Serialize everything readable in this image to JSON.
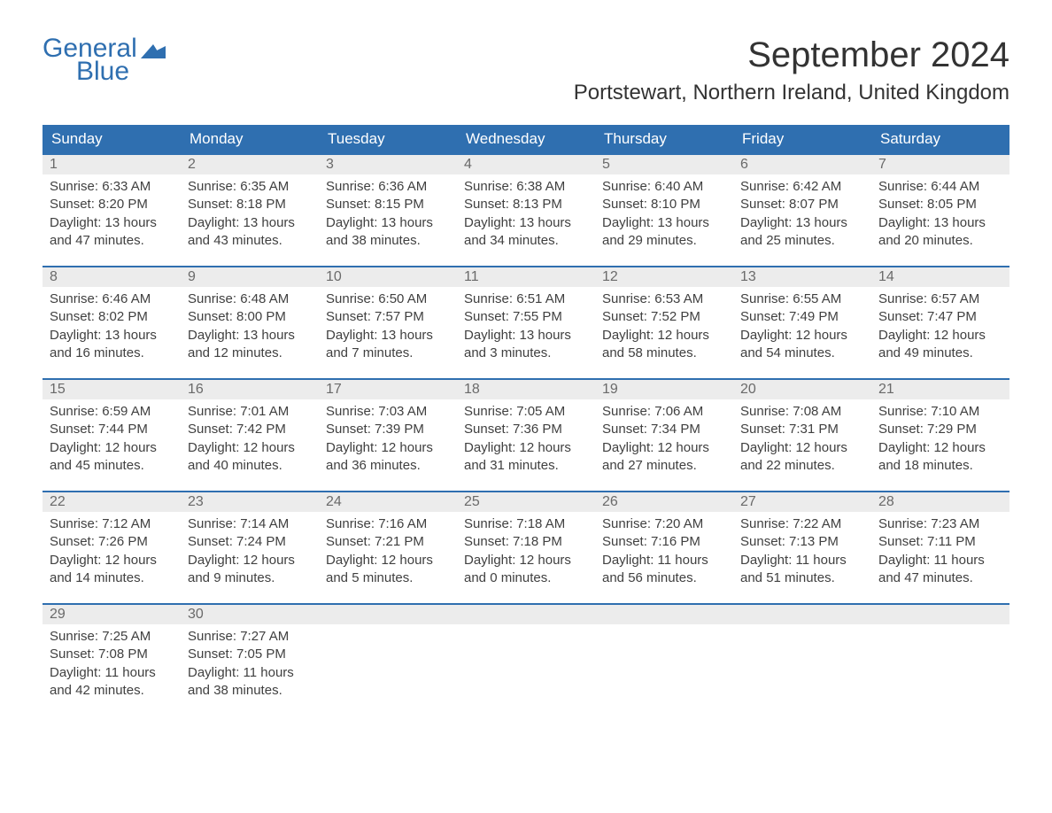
{
  "logo": {
    "line1": "General",
    "line2": "Blue",
    "flag_color": "#2f6fb0"
  },
  "title": "September 2024",
  "location": "Portstewart, Northern Ireland, United Kingdom",
  "day_headers": [
    "Sunday",
    "Monday",
    "Tuesday",
    "Wednesday",
    "Thursday",
    "Friday",
    "Saturday"
  ],
  "colors": {
    "header_bg": "#2f6fb0",
    "header_text": "#ffffff",
    "daynum_bg": "#ececec",
    "day_border": "#2f6fb0",
    "body_text": "#404040"
  },
  "weeks": [
    [
      {
        "n": "1",
        "sunrise": "6:33 AM",
        "sunset": "8:20 PM",
        "dl1": "Daylight: 13 hours",
        "dl2": "and 47 minutes."
      },
      {
        "n": "2",
        "sunrise": "6:35 AM",
        "sunset": "8:18 PM",
        "dl1": "Daylight: 13 hours",
        "dl2": "and 43 minutes."
      },
      {
        "n": "3",
        "sunrise": "6:36 AM",
        "sunset": "8:15 PM",
        "dl1": "Daylight: 13 hours",
        "dl2": "and 38 minutes."
      },
      {
        "n": "4",
        "sunrise": "6:38 AM",
        "sunset": "8:13 PM",
        "dl1": "Daylight: 13 hours",
        "dl2": "and 34 minutes."
      },
      {
        "n": "5",
        "sunrise": "6:40 AM",
        "sunset": "8:10 PM",
        "dl1": "Daylight: 13 hours",
        "dl2": "and 29 minutes."
      },
      {
        "n": "6",
        "sunrise": "6:42 AM",
        "sunset": "8:07 PM",
        "dl1": "Daylight: 13 hours",
        "dl2": "and 25 minutes."
      },
      {
        "n": "7",
        "sunrise": "6:44 AM",
        "sunset": "8:05 PM",
        "dl1": "Daylight: 13 hours",
        "dl2": "and 20 minutes."
      }
    ],
    [
      {
        "n": "8",
        "sunrise": "6:46 AM",
        "sunset": "8:02 PM",
        "dl1": "Daylight: 13 hours",
        "dl2": "and 16 minutes."
      },
      {
        "n": "9",
        "sunrise": "6:48 AM",
        "sunset": "8:00 PM",
        "dl1": "Daylight: 13 hours",
        "dl2": "and 12 minutes."
      },
      {
        "n": "10",
        "sunrise": "6:50 AM",
        "sunset": "7:57 PM",
        "dl1": "Daylight: 13 hours",
        "dl2": "and 7 minutes."
      },
      {
        "n": "11",
        "sunrise": "6:51 AM",
        "sunset": "7:55 PM",
        "dl1": "Daylight: 13 hours",
        "dl2": "and 3 minutes."
      },
      {
        "n": "12",
        "sunrise": "6:53 AM",
        "sunset": "7:52 PM",
        "dl1": "Daylight: 12 hours",
        "dl2": "and 58 minutes."
      },
      {
        "n": "13",
        "sunrise": "6:55 AM",
        "sunset": "7:49 PM",
        "dl1": "Daylight: 12 hours",
        "dl2": "and 54 minutes."
      },
      {
        "n": "14",
        "sunrise": "6:57 AM",
        "sunset": "7:47 PM",
        "dl1": "Daylight: 12 hours",
        "dl2": "and 49 minutes."
      }
    ],
    [
      {
        "n": "15",
        "sunrise": "6:59 AM",
        "sunset": "7:44 PM",
        "dl1": "Daylight: 12 hours",
        "dl2": "and 45 minutes."
      },
      {
        "n": "16",
        "sunrise": "7:01 AM",
        "sunset": "7:42 PM",
        "dl1": "Daylight: 12 hours",
        "dl2": "and 40 minutes."
      },
      {
        "n": "17",
        "sunrise": "7:03 AM",
        "sunset": "7:39 PM",
        "dl1": "Daylight: 12 hours",
        "dl2": "and 36 minutes."
      },
      {
        "n": "18",
        "sunrise": "7:05 AM",
        "sunset": "7:36 PM",
        "dl1": "Daylight: 12 hours",
        "dl2": "and 31 minutes."
      },
      {
        "n": "19",
        "sunrise": "7:06 AM",
        "sunset": "7:34 PM",
        "dl1": "Daylight: 12 hours",
        "dl2": "and 27 minutes."
      },
      {
        "n": "20",
        "sunrise": "7:08 AM",
        "sunset": "7:31 PM",
        "dl1": "Daylight: 12 hours",
        "dl2": "and 22 minutes."
      },
      {
        "n": "21",
        "sunrise": "7:10 AM",
        "sunset": "7:29 PM",
        "dl1": "Daylight: 12 hours",
        "dl2": "and 18 minutes."
      }
    ],
    [
      {
        "n": "22",
        "sunrise": "7:12 AM",
        "sunset": "7:26 PM",
        "dl1": "Daylight: 12 hours",
        "dl2": "and 14 minutes."
      },
      {
        "n": "23",
        "sunrise": "7:14 AM",
        "sunset": "7:24 PM",
        "dl1": "Daylight: 12 hours",
        "dl2": "and 9 minutes."
      },
      {
        "n": "24",
        "sunrise": "7:16 AM",
        "sunset": "7:21 PM",
        "dl1": "Daylight: 12 hours",
        "dl2": "and 5 minutes."
      },
      {
        "n": "25",
        "sunrise": "7:18 AM",
        "sunset": "7:18 PM",
        "dl1": "Daylight: 12 hours",
        "dl2": "and 0 minutes."
      },
      {
        "n": "26",
        "sunrise": "7:20 AM",
        "sunset": "7:16 PM",
        "dl1": "Daylight: 11 hours",
        "dl2": "and 56 minutes."
      },
      {
        "n": "27",
        "sunrise": "7:22 AM",
        "sunset": "7:13 PM",
        "dl1": "Daylight: 11 hours",
        "dl2": "and 51 minutes."
      },
      {
        "n": "28",
        "sunrise": "7:23 AM",
        "sunset": "7:11 PM",
        "dl1": "Daylight: 11 hours",
        "dl2": "and 47 minutes."
      }
    ],
    [
      {
        "n": "29",
        "sunrise": "7:25 AM",
        "sunset": "7:08 PM",
        "dl1": "Daylight: 11 hours",
        "dl2": "and 42 minutes."
      },
      {
        "n": "30",
        "sunrise": "7:27 AM",
        "sunset": "7:05 PM",
        "dl1": "Daylight: 11 hours",
        "dl2": "and 38 minutes."
      },
      null,
      null,
      null,
      null,
      null
    ]
  ],
  "labels": {
    "sunrise_prefix": "Sunrise: ",
    "sunset_prefix": "Sunset: "
  }
}
